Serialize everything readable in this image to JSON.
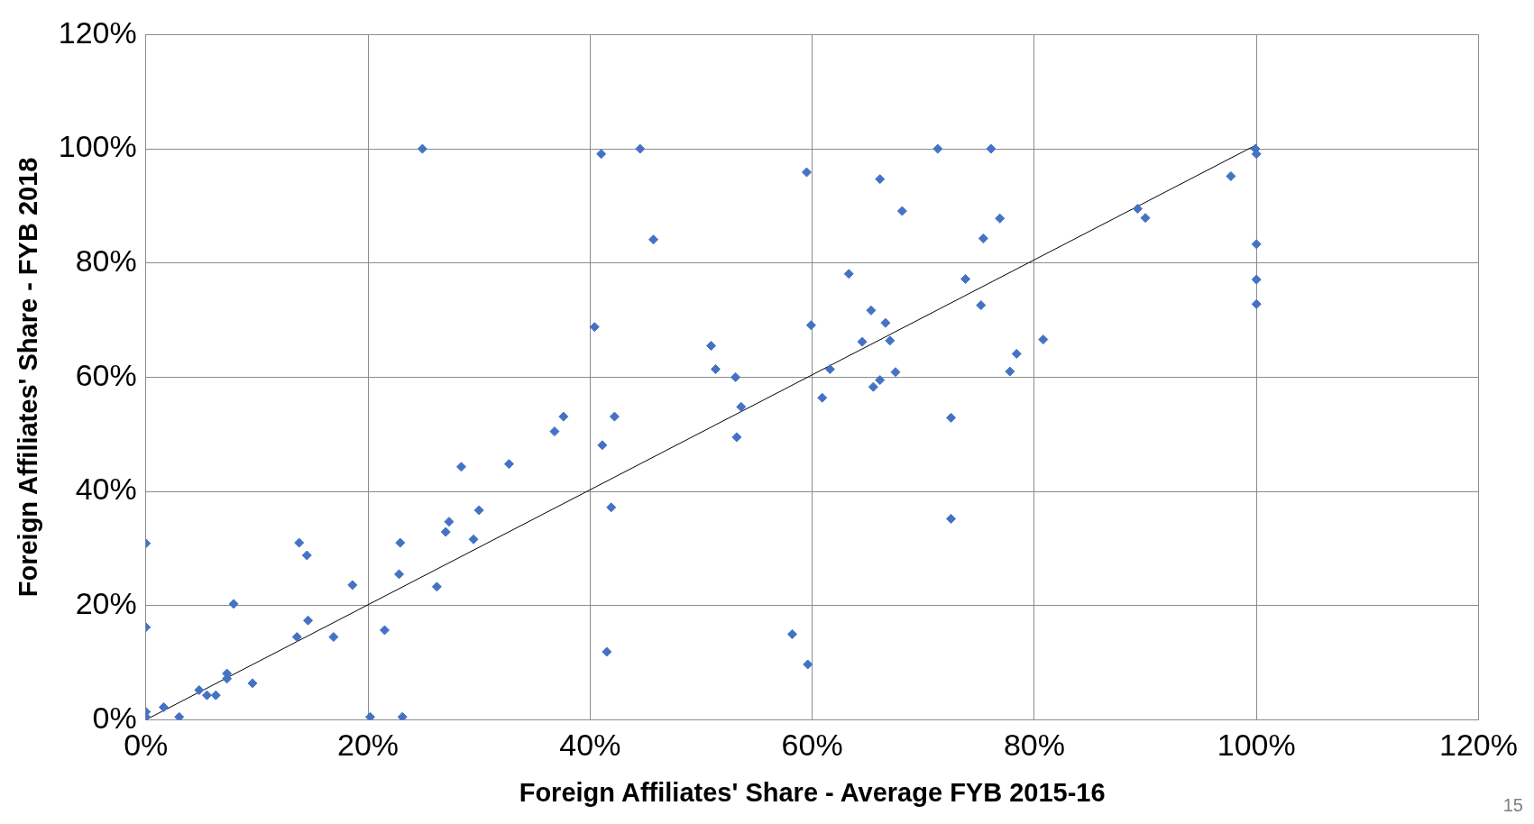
{
  "chart_data": {
    "type": "scatter",
    "xlabel": "Foreign Affiliates' Share - Average FYB 2015-16",
    "ylabel": "Foreign Affiliates' Share - FYB 2018",
    "xlim": [
      0,
      120
    ],
    "ylim": [
      0,
      120
    ],
    "xticks": [
      {
        "value": 0,
        "label": "0%"
      },
      {
        "value": 20,
        "label": "20%"
      },
      {
        "value": 40,
        "label": "40%"
      },
      {
        "value": 60,
        "label": "60%"
      },
      {
        "value": 80,
        "label": "80%"
      },
      {
        "value": 100,
        "label": "100%"
      },
      {
        "value": 120,
        "label": "120%"
      }
    ],
    "yticks": [
      {
        "value": 0,
        "label": "0%"
      },
      {
        "value": 20,
        "label": "20%"
      },
      {
        "value": 40,
        "label": "40%"
      },
      {
        "value": 60,
        "label": "60%"
      },
      {
        "value": 80,
        "label": "80%"
      },
      {
        "value": 100,
        "label": "100%"
      },
      {
        "value": 120,
        "label": "120%"
      }
    ],
    "grid": true,
    "legend": false,
    "marker": "diamond",
    "annotations": [
      "15"
    ],
    "series": [
      {
        "type": "scatter",
        "color": "#4472c4",
        "x": [
          0,
          0,
          0,
          0,
          1.6,
          3.0,
          4.8,
          5.5,
          6.3,
          7.3,
          7.3,
          7.9,
          9.6,
          13.6,
          13.8,
          14.5,
          14.6,
          16.9,
          18.6,
          20.2,
          21.5,
          22.8,
          22.9,
          23.1,
          24.9,
          26.2,
          27.0,
          27.3,
          28.4,
          29.5,
          30.0,
          32.7,
          36.8,
          37.6,
          40.4,
          41.0,
          41.1,
          41.5,
          41.9,
          42.2,
          44.5,
          45.7,
          50.9,
          51.3,
          53.1,
          53.2,
          53.6,
          58.2,
          59.5,
          59.6,
          59.9,
          60.9,
          61.6,
          63.3,
          64.5,
          65.3,
          65.5,
          66.1,
          66.1,
          66.6,
          67.0,
          67.5,
          68.1,
          71.3,
          72.5,
          72.5,
          73.8,
          75.2,
          75.4,
          76.1,
          76.9,
          77.8,
          78.4,
          80.8,
          89.3,
          90.0,
          97.7,
          99.9,
          100,
          100,
          100,
          100
        ],
        "values": [
          30.9,
          16.2,
          1.4,
          0.5,
          2.2,
          0.5,
          5.2,
          4.3,
          4.3,
          8.1,
          7.2,
          20.3,
          6.4,
          14.5,
          31.0,
          28.8,
          17.4,
          14.5,
          23.6,
          0.5,
          15.7,
          25.5,
          31.0,
          0.5,
          100,
          23.3,
          32.9,
          34.7,
          44.3,
          31.6,
          36.7,
          44.8,
          50.5,
          53.1,
          68.8,
          99.1,
          48.1,
          11.9,
          37.2,
          53.1,
          100,
          84.1,
          65.5,
          61.4,
          60.0,
          49.5,
          54.8,
          15.0,
          95.9,
          9.7,
          69.1,
          56.4,
          61.4,
          78.1,
          66.2,
          71.7,
          58.3,
          94.7,
          59.5,
          69.5,
          66.4,
          60.9,
          89.1,
          100,
          52.9,
          35.2,
          77.2,
          72.6,
          84.3,
          100,
          87.8,
          61.0,
          64.1,
          66.6,
          89.5,
          87.9,
          95.2,
          100,
          99.1,
          83.3,
          77.1,
          72.8
        ]
      },
      {
        "type": "line",
        "color": "#000000",
        "marker": "none",
        "line_style": "solid",
        "x": [
          0,
          100
        ],
        "values": [
          0,
          100.7
        ]
      }
    ]
  }
}
